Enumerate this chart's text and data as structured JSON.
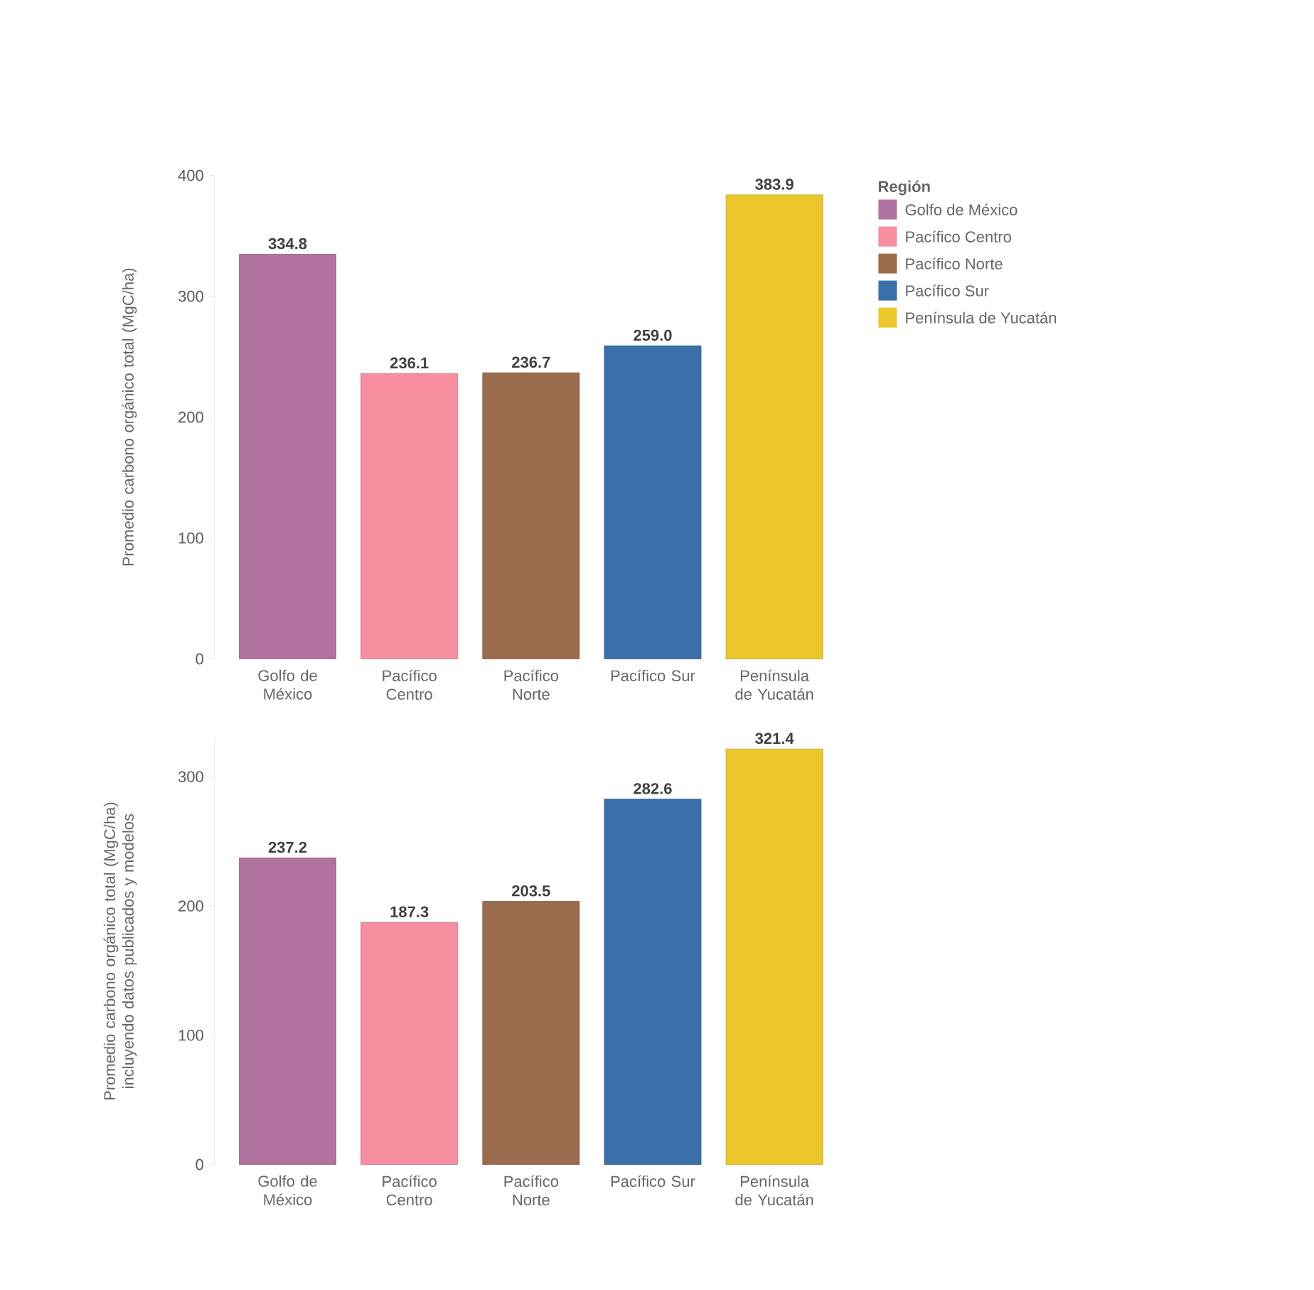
{
  "chart_data": [
    {
      "type": "bar",
      "ylabel": "Promedio carbono orgánico total (MgC/ha)",
      "legend_title": "Región",
      "legend": "top right",
      "categories": [
        "Golfo de México",
        "Pacífico Centro",
        "Pacífico Norte",
        "Pacífico Sur",
        "Península de Yucatán"
      ],
      "series": [
        {
          "name": "Golfo de México",
          "color": "#b0739f",
          "values": [
            334.8,
            null,
            null,
            null,
            null
          ],
          "value_labels": [
            "334.8",
            null,
            null,
            null,
            null
          ]
        },
        {
          "name": "Pacífico Centro",
          "color": "#f78ea0",
          "values": [
            null,
            236.1,
            null,
            null,
            null
          ],
          "value_labels": [
            null,
            "236.1",
            null,
            null,
            null
          ]
        },
        {
          "name": "Pacífico Norte",
          "color": "#9b6b4e",
          "values": [
            null,
            null,
            236.7,
            null,
            null
          ],
          "value_labels": [
            null,
            null,
            "236.7",
            null,
            null
          ]
        },
        {
          "name": "Pacífico Sur",
          "color": "#3b6fa9",
          "values": [
            null,
            null,
            null,
            259.0,
            null
          ],
          "value_labels": [
            null,
            null,
            null,
            "259.0",
            null
          ]
        },
        {
          "name": "Península de Yucatán",
          "color": "#ecc72c",
          "values": [
            null,
            null,
            null,
            null,
            383.9
          ],
          "value_labels": [
            null,
            null,
            null,
            null,
            "383.9"
          ]
        }
      ],
      "ylim": [
        0,
        400
      ],
      "yticks": [
        0,
        100,
        200,
        300,
        400
      ]
    },
    {
      "type": "bar",
      "ylabel": "Promedio carbono orgánico total (MgC/ha) incluyendo datos publicados y modelos",
      "categories": [
        "Golfo de México",
        "Pacífico Centro",
        "Pacífico Norte",
        "Pacífico Sur",
        "Península de Yucatán"
      ],
      "values": [
        237.2,
        187.3,
        203.5,
        282.6,
        321.4
      ],
      "value_labels": [
        "237.2",
        "187.3",
        "203.5",
        "282.6",
        "321.4"
      ],
      "colors": [
        "#b0739f",
        "#f78ea0",
        "#9b6b4e",
        "#3b6fa9",
        "#ecc72c"
      ],
      "ylim": [
        0,
        330
      ],
      "yticks": [
        0,
        100,
        200,
        300
      ]
    }
  ]
}
